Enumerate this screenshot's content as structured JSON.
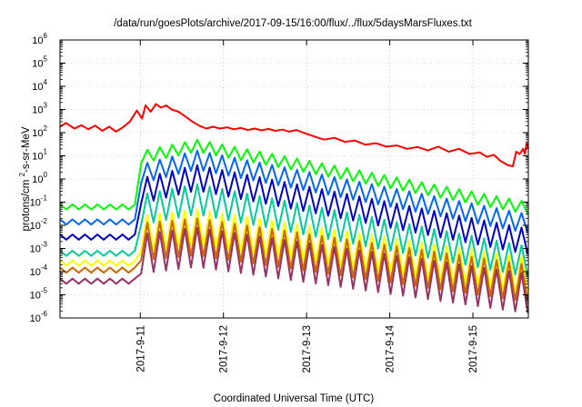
{
  "chart_data": {
    "type": "line",
    "title": "/data/run/goesPlots/archive/2017-09-15/16:00/flux/../flux/5daysMarsFluxes.txt",
    "xlabel": "Coordinated Universal Time (UTC)",
    "ylabel": "protons/cm²-s-sr-MeV",
    "y_scale": "log",
    "ylim": [
      1e-06,
      1000000.0
    ],
    "xlim": [
      "2017-09-10 00:50",
      "2017-09-15 16:00"
    ],
    "grid": true,
    "legend": "none",
    "x_ticks": [
      {
        "label": "2017-9-11",
        "value": "2017-09-11 00:00"
      },
      {
        "label": "2017-9-12",
        "value": "2017-09-12 00:00"
      },
      {
        "label": "2017-9-13",
        "value": "2017-09-13 00:00"
      },
      {
        "label": "2017-9-14",
        "value": "2017-09-14 00:00"
      },
      {
        "label": "2017-9-15",
        "value": "2017-09-15 00:00"
      }
    ],
    "y_ticks": [
      {
        "base": "10",
        "exp": "-6",
        "value": 1e-06
      },
      {
        "base": "10",
        "exp": "-5",
        "value": 1e-05
      },
      {
        "base": "10",
        "exp": "-4",
        "value": 0.0001
      },
      {
        "base": "10",
        "exp": "-3",
        "value": 0.001
      },
      {
        "base": "10",
        "exp": "-2",
        "value": 0.01
      },
      {
        "base": "10",
        "exp": "-1",
        "value": 0.1
      },
      {
        "base": "10",
        "exp": "0",
        "value": 1
      },
      {
        "base": "10",
        "exp": "1",
        "value": 10
      },
      {
        "base": "10",
        "exp": "2",
        "value": 100
      },
      {
        "base": "10",
        "exp": "3",
        "value": 1000
      },
      {
        "base": "10",
        "exp": "4",
        "value": 10000
      },
      {
        "base": "10",
        "exp": "5",
        "value": 100000
      },
      {
        "base": "10",
        "exp": "6",
        "value": 1000000
      }
    ],
    "series": [
      {
        "color": "#ff0000",
        "data": [
          [
            "2017-09-10 00:50",
            180
          ],
          [
            "2017-09-10 02:30",
            260
          ],
          [
            "2017-09-10 05:00",
            150
          ],
          [
            "2017-09-10 07:00",
            210
          ],
          [
            "2017-09-10 09:00",
            140
          ],
          [
            "2017-09-10 11:00",
            200
          ],
          [
            "2017-09-10 13:00",
            120
          ],
          [
            "2017-09-10 15:00",
            180
          ],
          [
            "2017-09-10 17:00",
            110
          ],
          [
            "2017-09-10 19:00",
            170
          ],
          [
            "2017-09-10 21:00",
            300
          ],
          [
            "2017-09-10 23:00",
            900
          ],
          [
            "2017-09-11 00:30",
            400
          ],
          [
            "2017-09-11 01:30",
            1500
          ],
          [
            "2017-09-11 03:00",
            800
          ],
          [
            "2017-09-11 04:30",
            1700
          ],
          [
            "2017-09-11 06:00",
            1200
          ],
          [
            "2017-09-11 07:30",
            1500
          ],
          [
            "2017-09-11 09:00",
            1000
          ],
          [
            "2017-09-11 11:00",
            800
          ],
          [
            "2017-09-11 13:00",
            500
          ],
          [
            "2017-09-11 15:00",
            300
          ],
          [
            "2017-09-11 17:00",
            200
          ],
          [
            "2017-09-11 19:00",
            150
          ],
          [
            "2017-09-11 21:00",
            180
          ],
          [
            "2017-09-11 23:00",
            150
          ],
          [
            "2017-09-12 01:00",
            170
          ],
          [
            "2017-09-12 03:00",
            140
          ],
          [
            "2017-09-12 05:00",
            160
          ],
          [
            "2017-09-12 07:00",
            130
          ],
          [
            "2017-09-12 09:00",
            150
          ],
          [
            "2017-09-12 11:00",
            125
          ],
          [
            "2017-09-12 13:00",
            145
          ],
          [
            "2017-09-12 15:00",
            120
          ],
          [
            "2017-09-12 17:00",
            135
          ],
          [
            "2017-09-12 19:00",
            110
          ],
          [
            "2017-09-12 21:00",
            130
          ],
          [
            "2017-09-12 23:00",
            100
          ],
          [
            "2017-09-13 02:00",
            70
          ],
          [
            "2017-09-13 05:00",
            50
          ],
          [
            "2017-09-13 08:00",
            60
          ],
          [
            "2017-09-13 11:00",
            40
          ],
          [
            "2017-09-13 14:00",
            45
          ],
          [
            "2017-09-13 17:00",
            30
          ],
          [
            "2017-09-13 20:00",
            35
          ],
          [
            "2017-09-13 23:00",
            25
          ],
          [
            "2017-09-14 02:00",
            28
          ],
          [
            "2017-09-14 05:00",
            20
          ],
          [
            "2017-09-14 08:00",
            24
          ],
          [
            "2017-09-14 11:00",
            17
          ],
          [
            "2017-09-14 14:00",
            25
          ],
          [
            "2017-09-14 17:00",
            15
          ],
          [
            "2017-09-14 20:00",
            20
          ],
          [
            "2017-09-14 23:00",
            12
          ],
          [
            "2017-09-15 02:00",
            14
          ],
          [
            "2017-09-15 04:00",
            9
          ],
          [
            "2017-09-15 06:00",
            11
          ],
          [
            "2017-09-15 08:00",
            6
          ],
          [
            "2017-09-15 10:00",
            4
          ],
          [
            "2017-09-15 11:30",
            3.5
          ],
          [
            "2017-09-15 12:30",
            15
          ],
          [
            "2017-09-15 13:30",
            12
          ],
          [
            "2017-09-15 14:30",
            20
          ],
          [
            "2017-09-15 15:00",
            12
          ],
          [
            "2017-09-15 15:30",
            35
          ],
          [
            "2017-09-15 16:00",
            20
          ]
        ]
      },
      {
        "color": "#00ff00",
        "profile": {
          "start": "2017-09-10 00:50",
          "end": "2017-09-15 16:00",
          "pre": 0.08,
          "onset": "2017-09-10 23:20",
          "jump": 15,
          "peak": 50,
          "end_value": 0.1,
          "period_h": 3.6,
          "dip": 0.3
        }
      },
      {
        "color": "#0066ff",
        "profile": {
          "start": "2017-09-10 00:50",
          "end": "2017-09-15 16:00",
          "pre": 0.018,
          "onset": "2017-09-10 23:20",
          "jump": 4,
          "peak": 17,
          "end_value": 0.03,
          "period_h": 3.6,
          "dip": 0.15
        }
      },
      {
        "color": "#0000cc",
        "profile": {
          "start": "2017-09-10 00:50",
          "end": "2017-09-15 16:00",
          "pre": 0.004,
          "onset": "2017-09-10 23:20",
          "jump": 1,
          "peak": 4,
          "end_value": 0.007,
          "period_h": 3.6,
          "dip": 0.08
        }
      },
      {
        "color": "#00cc99",
        "profile": {
          "start": "2017-09-10 00:50",
          "end": "2017-09-15 16:00",
          "pre": 0.0008,
          "onset": "2017-09-10 23:20",
          "jump": 0.2,
          "peak": 0.6,
          "end_value": 0.0012,
          "period_h": 3.6,
          "dip": 0.05
        }
      },
      {
        "color": "#ffff00",
        "profile": {
          "start": "2017-09-10 00:50",
          "end": "2017-09-15 16:00",
          "pre": 0.0003,
          "onset": "2017-09-10 23:20",
          "jump": 0.025,
          "peak": 0.05,
          "end_value": 0.0004,
          "period_h": 3.6,
          "dip": 0.03
        }
      },
      {
        "color": "#cc6600",
        "profile": {
          "start": "2017-09-10 00:50",
          "end": "2017-09-15 16:00",
          "pre": 0.00015,
          "onset": "2017-09-10 23:20",
          "jump": 0.012,
          "peak": 0.02,
          "end_value": 0.0002,
          "period_h": 3.6,
          "dip": 0.025
        }
      },
      {
        "color": "#993366",
        "profile": {
          "start": "2017-09-10 00:50",
          "end": "2017-09-15 16:00",
          "pre": 5e-05,
          "onset": "2017-09-10 23:20",
          "jump": 0.004,
          "peak": 0.008,
          "end_value": 8e-05,
          "period_h": 3.6,
          "dip": 0.02
        }
      }
    ]
  }
}
